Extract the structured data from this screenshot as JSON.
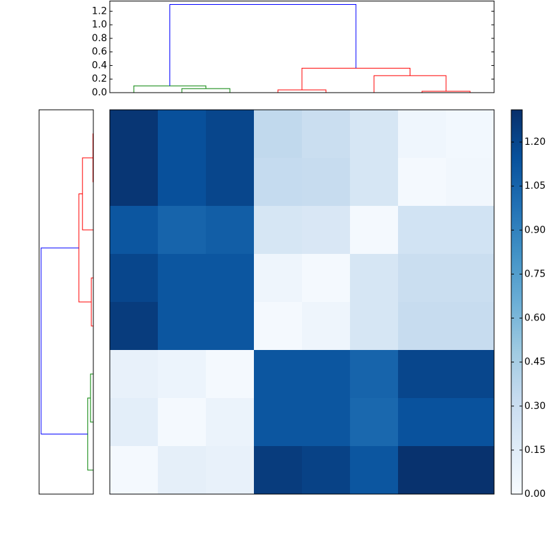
{
  "chart_data": [
    {
      "type": "dendrogram",
      "orientation": "top",
      "xlim": [
        0,
        80
      ],
      "ylim": [
        0,
        1.35
      ],
      "yticks": [
        {
          "value": 0,
          "label": "0.0"
        },
        0.2,
        0.4,
        0.6,
        0.8,
        {
          "value": 1,
          "label": "1.0"
        },
        1.2
      ],
      "links": [
        {
          "leaf": [
            15,
            15,
            25,
            25
          ],
          "height": [
            0,
            0.06,
            0.06,
            0
          ],
          "color": "#008000"
        },
        {
          "leaf": [
            5,
            5,
            20,
            20
          ],
          "height": [
            0,
            0.1,
            0.1,
            0.06
          ],
          "color": "#008000"
        },
        {
          "leaf": [
            35,
            35,
            45,
            45
          ],
          "height": [
            0,
            0.04,
            0.04,
            0
          ],
          "color": "#ff0000"
        },
        {
          "leaf": [
            65,
            65,
            75,
            75
          ],
          "height": [
            0,
            0.02,
            0.02,
            0
          ],
          "color": "#ff0000"
        },
        {
          "leaf": [
            55,
            55,
            70,
            70
          ],
          "height": [
            0,
            0.25,
            0.25,
            0.02
          ],
          "color": "#ff0000"
        },
        {
          "leaf": [
            40,
            40,
            62.5,
            62.5
          ],
          "height": [
            0.04,
            0.36,
            0.36,
            0.25
          ],
          "color": "#ff0000"
        },
        {
          "leaf": [
            12.5,
            12.5,
            51.25,
            51.25
          ],
          "height": [
            0.1,
            1.3,
            1.3,
            0.36
          ],
          "color": "#0000ff"
        }
      ]
    },
    {
      "type": "dendrogram",
      "orientation": "left",
      "xlim": [
        1.35,
        0
      ],
      "ylim": [
        0,
        80
      ],
      "links": [
        {
          "leaf": [
            5,
            5,
            15,
            15
          ],
          "height": [
            0,
            0.01,
            0.01,
            0
          ],
          "color": "#ff0000"
        },
        {
          "leaf": [
            10,
            10,
            25,
            25
          ],
          "height": [
            0.01,
            0.27,
            0.27,
            0
          ],
          "color": "#ff0000"
        },
        {
          "leaf": [
            35,
            35,
            45,
            45
          ],
          "height": [
            0,
            0.05,
            0.05,
            0
          ],
          "color": "#ff0000"
        },
        {
          "leaf": [
            17.5,
            17.5,
            40,
            40
          ],
          "height": [
            0.27,
            0.36,
            0.36,
            0.05
          ],
          "color": "#ff0000"
        },
        {
          "leaf": [
            55,
            55,
            65,
            65
          ],
          "height": [
            0,
            0.07,
            0.07,
            0
          ],
          "color": "#008000"
        },
        {
          "leaf": [
            60,
            60,
            75,
            75
          ],
          "height": [
            0.07,
            0.14,
            0.14,
            0
          ],
          "color": "#008000"
        },
        {
          "leaf": [
            28.75,
            28.75,
            67.5,
            67.5
          ],
          "height": [
            0.36,
            1.3,
            1.3,
            0.14
          ],
          "color": "#0000ff"
        }
      ]
    },
    {
      "type": "heatmap",
      "values": [
        [
          1.28,
          1.15,
          1.2,
          0.35,
          0.3,
          0.22,
          0.05,
          0.03
        ],
        [
          1.28,
          1.15,
          1.2,
          0.33,
          0.32,
          0.22,
          0.02,
          0.04
        ],
        [
          1.12,
          1.05,
          1.08,
          0.22,
          0.2,
          0.02,
          0.25,
          0.25
        ],
        [
          1.2,
          1.12,
          1.12,
          0.06,
          0.02,
          0.22,
          0.3,
          0.3
        ],
        [
          1.25,
          1.12,
          1.12,
          0.02,
          0.06,
          0.22,
          0.32,
          0.32
        ],
        [
          0.1,
          0.07,
          0.02,
          1.12,
          1.12,
          1.05,
          1.2,
          1.2
        ],
        [
          0.13,
          0.02,
          0.08,
          1.12,
          1.12,
          1.03,
          1.14,
          1.14
        ],
        [
          0.02,
          0.12,
          0.1,
          1.25,
          1.22,
          1.12,
          1.3,
          1.3
        ]
      ],
      "colormap": [
        "#f7fbff",
        "#deebf7",
        "#c6dbef",
        "#9ecae1",
        "#6baed6",
        "#4292c6",
        "#2171b5",
        "#08519c",
        "#08306b"
      ],
      "clim": [
        0,
        1.31
      ],
      "cticks": [
        {
          "value": 0,
          "label": "0.00"
        },
        0.15,
        {
          "value": 0.3,
          "label": "0.30"
        },
        0.45,
        {
          "value": 0.6,
          "label": "0.60"
        },
        0.75,
        {
          "value": 0.9,
          "label": "0.90"
        },
        1.05,
        {
          "value": 1.2,
          "label": "1.20"
        }
      ]
    }
  ]
}
